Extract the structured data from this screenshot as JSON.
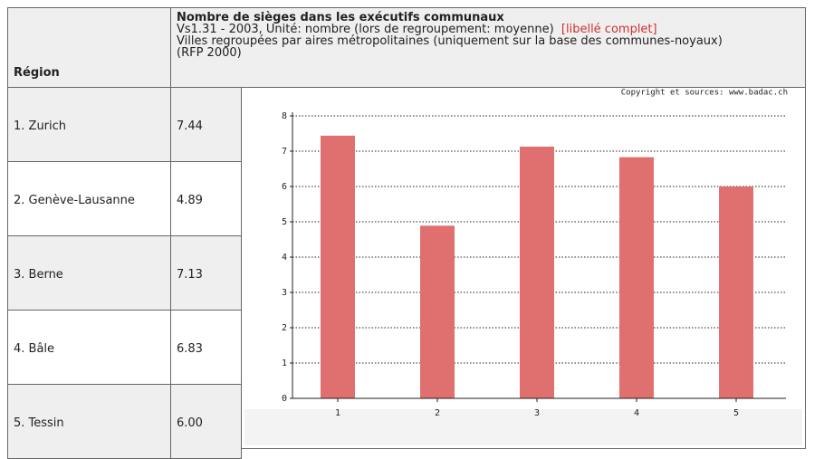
{
  "header": {
    "region_label": "Région",
    "title": "Nombre de sièges dans les exécutifs communaux",
    "subtitle": "Vs1.31 - 2003, Unité: nombre (lors de regroupement: moyenne)",
    "link": "[libellé complet]",
    "note": "Villes regroupées par aires métropolitaines (uniquement sur la base des communes-noyaux)",
    "note2": "(RFP 2000)"
  },
  "table": {
    "rows": [
      [
        "1. Zurich",
        "7.44"
      ],
      [
        "2. Genève-Lausanne",
        "4.89"
      ],
      [
        "3. Berne",
        "7.13"
      ],
      [
        "4. Bâle",
        "6.83"
      ],
      [
        "5. Tessin",
        "6.00"
      ]
    ]
  },
  "chart_data": {
    "type": "bar",
    "copyright": "Copyright et sources: www.badac.ch",
    "categories": [
      "1",
      "2",
      "3",
      "4",
      "5"
    ],
    "values": [
      7.44,
      4.89,
      7.13,
      6.83,
      6.0
    ],
    "color": "#e07070",
    "ylim": [
      0,
      8
    ],
    "yticks": [
      0,
      1,
      2,
      3,
      4,
      5,
      6,
      7,
      8
    ],
    "grid": true
  }
}
